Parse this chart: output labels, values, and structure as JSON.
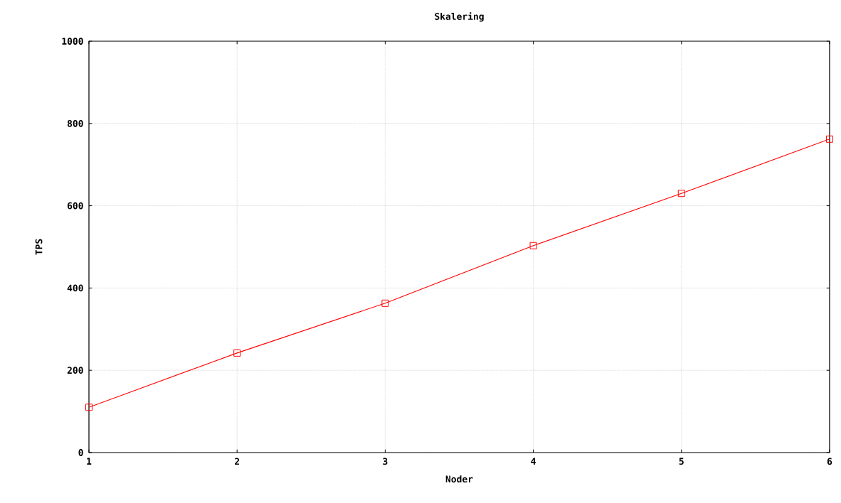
{
  "chart_data": {
    "type": "line",
    "title": "Skalering",
    "xlabel": "Noder",
    "ylabel": "TPS",
    "x": [
      1,
      2,
      3,
      4,
      5,
      6
    ],
    "series": [
      {
        "color": "#ff0000",
        "values": [
          110,
          242,
          363,
          503,
          630,
          762
        ]
      }
    ],
    "xlim": [
      1,
      6
    ],
    "xticks": [
      1,
      2,
      3,
      4,
      5,
      6
    ],
    "ylim": [
      0,
      1000
    ],
    "yticks": [
      0,
      200,
      400,
      600,
      800,
      1000
    ],
    "grid": true,
    "marker": "square",
    "line_style": "solid"
  }
}
